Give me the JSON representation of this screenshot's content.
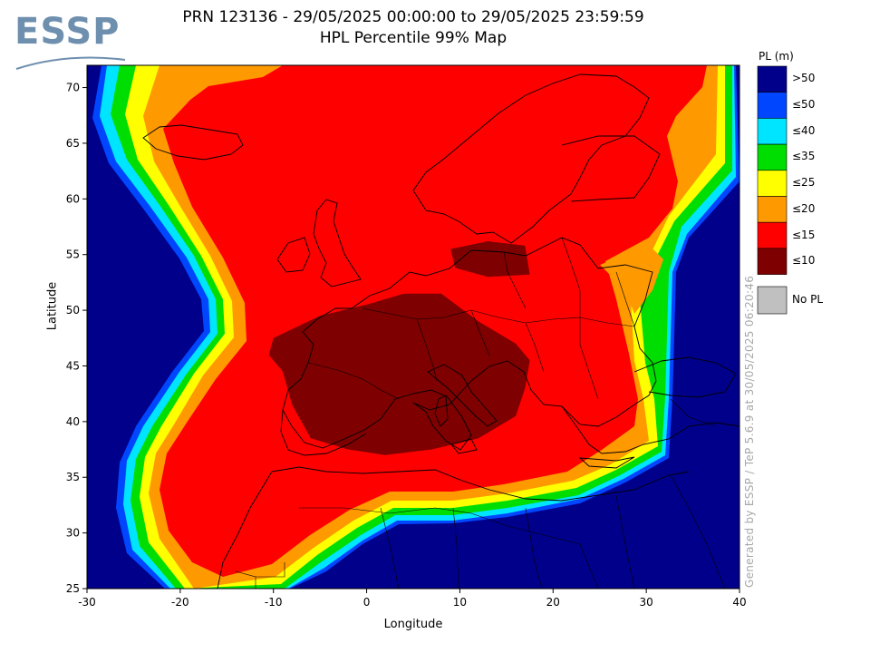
{
  "header": {
    "title_line1": "PRN 123136 - 29/05/2025 00:00:00 to 29/05/2025 23:59:59",
    "title_line2": "HPL Percentile 99% Map",
    "logo_text": "ESSP"
  },
  "axes": {
    "xlabel": "Longitude",
    "ylabel": "Latitude",
    "x_ticks": [
      "-30",
      "-20",
      "-10",
      "0",
      "10",
      "20",
      "30",
      "40"
    ],
    "y_ticks": [
      "25",
      "30",
      "35",
      "40",
      "45",
      "50",
      "55",
      "60",
      "65",
      "70"
    ],
    "x_range": [
      -30,
      40
    ],
    "y_range": [
      25,
      72
    ]
  },
  "legend": {
    "title": "PL (m)",
    "items": [
      {
        "label": ">50",
        "color": "#00008b"
      },
      {
        "label": "≤50",
        "color": "#0046ff"
      },
      {
        "label": "≤40",
        "color": "#00e5ff"
      },
      {
        "label": "≤35",
        "color": "#00dd00"
      },
      {
        "label": "≤25",
        "color": "#ffff00"
      },
      {
        "label": "≤20",
        "color": "#ff9900"
      },
      {
        "label": "≤15",
        "color": "#ff0000"
      },
      {
        "label": "≤10",
        "color": "#7f0000"
      }
    ],
    "nopl": {
      "label": "No PL",
      "color": "#c0c0c0"
    }
  },
  "credit": "Generated by ESSP / TeP 5.6.9 at 30/05/2025 06:20:46",
  "chart_data": {
    "type": "heatmap",
    "title": "HPL Percentile 99% Map",
    "xlabel": "Longitude",
    "ylabel": "Latitude",
    "xlim": [
      -30,
      40
    ],
    "ylim": [
      25,
      72
    ],
    "grid": false,
    "legend_position": "right",
    "zones": [
      {
        "class": "≤10",
        "description_region": "central",
        "polygon_lonlat": [
          [
            -10,
            47.5
          ],
          [
            -5,
            49.5
          ],
          [
            0,
            50.5
          ],
          [
            4,
            51.5
          ],
          [
            8,
            51.5
          ],
          [
            12,
            49
          ],
          [
            16,
            47
          ],
          [
            17.5,
            45.5
          ],
          [
            17,
            43
          ],
          [
            16,
            40.5
          ],
          [
            12,
            38.5
          ],
          [
            7,
            37.5
          ],
          [
            2,
            37
          ],
          [
            -2,
            37.5
          ],
          [
            -6,
            38.5
          ],
          [
            -8,
            41.5
          ],
          [
            -9,
            44.5
          ],
          [
            -10.5,
            46
          ]
        ]
      },
      {
        "class": "≤10",
        "description_region": "north-baltic",
        "polygon_lonlat": [
          [
            9,
            55.5
          ],
          [
            13,
            56.2
          ],
          [
            17,
            55.8
          ],
          [
            17.5,
            53.2
          ],
          [
            13,
            53
          ],
          [
            9.5,
            53.8
          ]
        ]
      }
    ]
  }
}
